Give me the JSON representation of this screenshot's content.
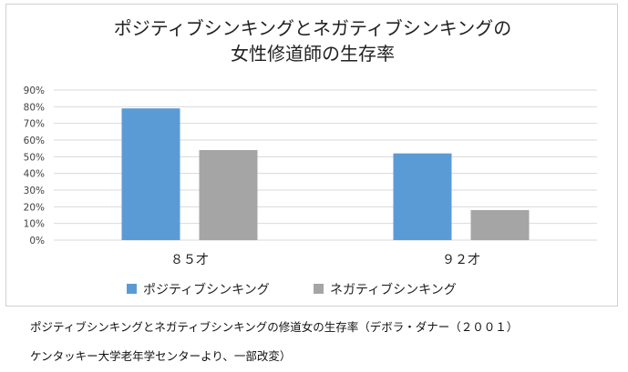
{
  "chart_data": {
    "type": "bar",
    "title_lines": [
      "ポジティブシンキングとネガティブシンキングの",
      "女性修道師の生存率"
    ],
    "categories": [
      "８５才",
      "９２才"
    ],
    "series": [
      {
        "name": "ポジティブシンキング",
        "color": "#5b9bd5",
        "values": [
          79,
          52
        ]
      },
      {
        "name": "ネガティブシンキング",
        "color": "#a5a5a5",
        "values": [
          54,
          18
        ]
      }
    ],
    "y_ticks": [
      "0%",
      "10%",
      "20%",
      "30%",
      "40%",
      "50%",
      "60%",
      "70%",
      "80%",
      "90%"
    ],
    "ylim": [
      0,
      90
    ],
    "grid": true,
    "legend_position": "bottom"
  },
  "captions": {
    "line1": "ポジティブシンキングとネガティブシンキングの修道女の生存率（デボラ・ダナー（２００１）",
    "line2": "ケンタッキー大学老年学センターより、一部改変）"
  }
}
